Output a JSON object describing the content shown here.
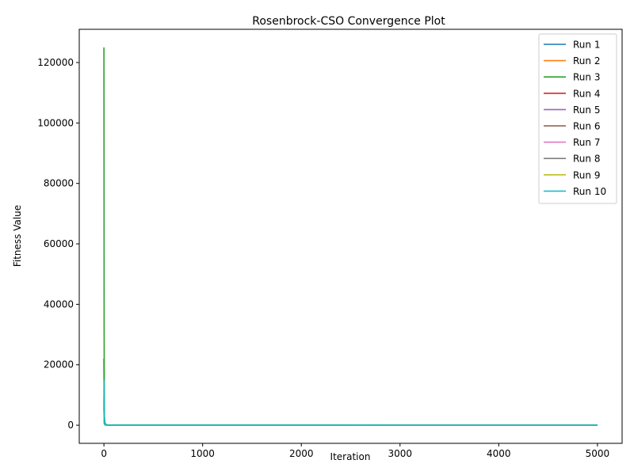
{
  "chart_data": {
    "type": "line",
    "title": "Rosenbrock-CSO Convergence Plot",
    "xlabel": "Iteration",
    "ylabel": "Fitness Value",
    "xlim": [
      -250,
      5250
    ],
    "ylim": [
      -6000,
      131000
    ],
    "xticks": [
      0,
      1000,
      2000,
      3000,
      4000,
      5000
    ],
    "yticks": [
      0,
      20000,
      40000,
      60000,
      80000,
      100000,
      120000
    ],
    "grid": false,
    "legend": "top-right",
    "series": [
      {
        "name": "Run 1",
        "color": "#1f77b4",
        "x": [
          0,
          1,
          2,
          3,
          5,
          10,
          20,
          50,
          5000
        ],
        "y": [
          9000,
          6000,
          3000,
          1500,
          600,
          200,
          80,
          30,
          0
        ]
      },
      {
        "name": "Run 2",
        "color": "#ff7f0e",
        "x": [
          0,
          1,
          2,
          3,
          5,
          10,
          20,
          50,
          5000
        ],
        "y": [
          12000,
          8000,
          4000,
          2000,
          800,
          250,
          90,
          30,
          0
        ]
      },
      {
        "name": "Run 3",
        "color": "#2ca02c",
        "x": [
          0,
          1,
          2,
          3,
          4,
          5,
          10,
          20,
          50,
          5000
        ],
        "y": [
          125000,
          90000,
          32000,
          18000,
          8000,
          3000,
          800,
          200,
          50,
          0
        ]
      },
      {
        "name": "Run 4",
        "color": "#d62728",
        "x": [
          0,
          1,
          2,
          3,
          5,
          10,
          20,
          50,
          5000
        ],
        "y": [
          22000,
          16000,
          8000,
          3000,
          1000,
          300,
          100,
          30,
          0
        ]
      },
      {
        "name": "Run 5",
        "color": "#9467bd",
        "x": [
          0,
          1,
          2,
          3,
          5,
          10,
          20,
          50,
          5000
        ],
        "y": [
          7000,
          4500,
          2500,
          1200,
          500,
          150,
          60,
          20,
          0
        ]
      },
      {
        "name": "Run 6",
        "color": "#8c564b",
        "x": [
          0,
          1,
          2,
          3,
          5,
          10,
          20,
          50,
          5000
        ],
        "y": [
          6000,
          4000,
          2000,
          1000,
          400,
          150,
          60,
          20,
          0
        ]
      },
      {
        "name": "Run 7",
        "color": "#e377c2",
        "x": [
          0,
          1,
          2,
          3,
          5,
          10,
          20,
          50,
          5000
        ],
        "y": [
          5000,
          3500,
          1800,
          900,
          350,
          120,
          50,
          20,
          0
        ]
      },
      {
        "name": "Run 8",
        "color": "#7f7f7f",
        "x": [
          0,
          1,
          2,
          3,
          5,
          10,
          20,
          50,
          5000
        ],
        "y": [
          8000,
          5000,
          2500,
          1200,
          500,
          150,
          60,
          20,
          0
        ]
      },
      {
        "name": "Run 9",
        "color": "#bcbd22",
        "x": [
          0,
          1,
          2,
          3,
          5,
          10,
          20,
          50,
          5000
        ],
        "y": [
          10000,
          7000,
          3500,
          1600,
          600,
          200,
          70,
          25,
          0
        ]
      },
      {
        "name": "Run 10",
        "color": "#17becf",
        "x": [
          0,
          1,
          2,
          3,
          5,
          10,
          20,
          50,
          5000
        ],
        "y": [
          15000,
          10000,
          5000,
          2000,
          700,
          200,
          80,
          25,
          0
        ]
      }
    ]
  }
}
